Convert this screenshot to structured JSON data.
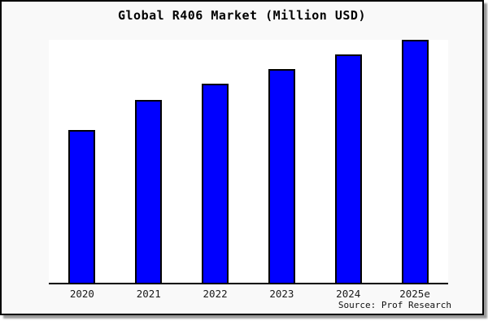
{
  "page": {
    "outer_background": "#ffffff",
    "frame_background": "#f9f9f9",
    "frame_border_color": "#000000",
    "shadow_color": "#9a9a9a"
  },
  "title": "Global R406 Market (Million USD)",
  "source_note": "Source: Prof Research",
  "colors": {
    "bar_fill": "#0000ff",
    "bar_border": "#000000",
    "plot_background": "#ffffff",
    "axis_color": "#000000",
    "label_text": "#1a1a1a"
  },
  "chart_data": {
    "type": "bar",
    "title": "Global R406 Market (Million USD)",
    "categories": [
      "2020",
      "2021",
      "2022",
      "2023",
      "2024",
      "2025e"
    ],
    "series": [
      {
        "name": "Global R406 Market",
        "values_relative_height": [
          0.629,
          0.753,
          0.819,
          0.88,
          0.94,
          1.0
        ]
      }
    ],
    "value_axis_visible": false,
    "value_labels_visible": false,
    "grid": false,
    "legend": false,
    "xlabel": "",
    "ylabel": "",
    "bar_color": "#0000ff",
    "baseline_axis": "x",
    "source": "Source: Prof Research",
    "note": "No numeric value axis shown in original; values are relative bar heights (fraction of tallest bar, 2025e = 1.0)"
  }
}
